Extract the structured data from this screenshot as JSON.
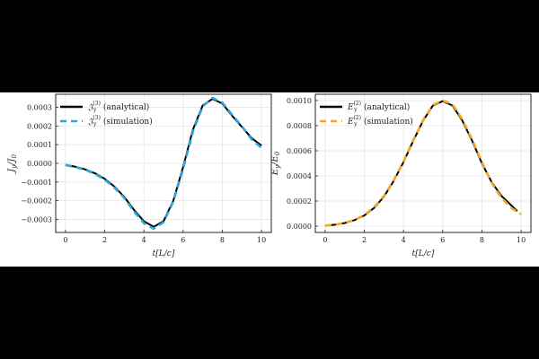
{
  "chart_data": [
    {
      "type": "line",
      "xlabel": "t[L/c]",
      "ylabel": "J_y/J_0",
      "xlim": [
        -0.5,
        10.5
      ],
      "ylim": [
        -0.00037,
        0.00037
      ],
      "xticks": [
        0,
        2,
        4,
        6,
        8,
        10
      ],
      "yticks": [
        -0.0003,
        -0.0002,
        -0.0001,
        0,
        0.0001,
        0.0002,
        0.0003
      ],
      "ytick_labels": [
        "−0.0003",
        "−0.0002",
        "−0.0001",
        "0.0000",
        "0.0001",
        "0.0002",
        "0.0003"
      ],
      "xtick_labels": [
        "0",
        "2",
        "4",
        "6",
        "8",
        "10"
      ],
      "grid": true,
      "legend_position": "top-left",
      "series": [
        {
          "name": "𝔍_y^(3) (analytical)",
          "color": "#000000",
          "style": "solid",
          "x": [
            0,
            0.5,
            1,
            1.5,
            2,
            2.5,
            3,
            3.5,
            4,
            4.5,
            5,
            5.5,
            6,
            6.5,
            7,
            7.5,
            8,
            8.5,
            9,
            9.5,
            10
          ],
          "y": [
            -8e-06,
            -1.8e-05,
            -3.2e-05,
            -5.3e-05,
            -8.3e-05,
            -0.000125,
            -0.00018,
            -0.00025,
            -0.00031,
            -0.00034,
            -0.00031,
            -0.0002,
            -2e-05,
            0.00018,
            0.00031,
            0.000345,
            0.00032,
            0.000255,
            0.000195,
            0.000135,
            9.5e-05
          ]
        },
        {
          "name": "𝔍_y^(3) (simulation)",
          "color": "#29a8e0",
          "style": "dashed",
          "x": [
            0,
            0.5,
            1,
            1.5,
            2,
            2.5,
            3,
            3.5,
            4,
            4.5,
            5,
            5.5,
            6,
            6.5,
            7,
            7.5,
            8,
            8.5,
            9,
            9.5,
            10
          ],
          "y": [
            -9e-06,
            -2e-05,
            -3.4e-05,
            -5.6e-05,
            -8.7e-05,
            -0.00013,
            -0.000185,
            -0.000258,
            -0.00032,
            -0.00035,
            -0.000315,
            -0.000205,
            -3e-05,
            0.00017,
            0.000305,
            0.00035,
            0.000325,
            0.00026,
            0.000198,
            0.000128,
            8.3e-05
          ]
        }
      ]
    },
    {
      "type": "line",
      "xlabel": "t[L/c]",
      "ylabel": "E_y/E_0",
      "xlim": [
        -0.5,
        10.5
      ],
      "ylim": [
        -5e-05,
        0.00105
      ],
      "xticks": [
        0,
        2,
        4,
        6,
        8,
        10
      ],
      "yticks": [
        0,
        0.0002,
        0.0004,
        0.0006,
        0.0008,
        0.001
      ],
      "ytick_labels": [
        "0.0000",
        "0.0002",
        "0.0004",
        "0.0006",
        "0.0008",
        "0.0010"
      ],
      "xtick_labels": [
        "0",
        "2",
        "4",
        "6",
        "8",
        "10"
      ],
      "grid": true,
      "legend_position": "top-left",
      "series": [
        {
          "name": "E_y^(2) (analytical)",
          "color": "#000000",
          "style": "solid",
          "x": [
            0,
            0.5,
            1,
            1.5,
            2,
            2.5,
            3,
            3.5,
            4,
            4.5,
            5,
            5.5,
            6,
            6.5,
            7,
            7.5,
            8,
            8.5,
            9,
            9.5,
            9.8
          ],
          "y": [
            4e-06,
            1.2e-05,
            2.5e-05,
            4.8e-05,
            8.5e-05,
            0.000145,
            0.000235,
            0.00036,
            0.00051,
            0.00068,
            0.00084,
            0.00096,
            0.000995,
            0.00096,
            0.00084,
            0.00068,
            0.0005,
            0.00035,
            0.00024,
            0.000165,
            0.00012
          ]
        },
        {
          "name": "E_y^(2) (simulation)",
          "color": "#f5a623",
          "style": "dashed",
          "x": [
            0,
            0.5,
            1,
            1.5,
            2,
            2.5,
            3,
            3.5,
            4,
            4.5,
            5,
            5.5,
            6,
            6.5,
            7,
            7.5,
            8,
            8.5,
            9,
            9.5,
            10
          ],
          "y": [
            4e-06,
            1.2e-05,
            2.6e-05,
            5e-05,
            8.8e-05,
            0.00015,
            0.00024,
            0.000365,
            0.000515,
            0.000685,
            0.000845,
            0.000965,
            0.001,
            0.00097,
            0.00085,
            0.00069,
            0.00051,
            0.000345,
            0.000225,
            0.000145,
            9.5e-05
          ]
        }
      ]
    }
  ]
}
